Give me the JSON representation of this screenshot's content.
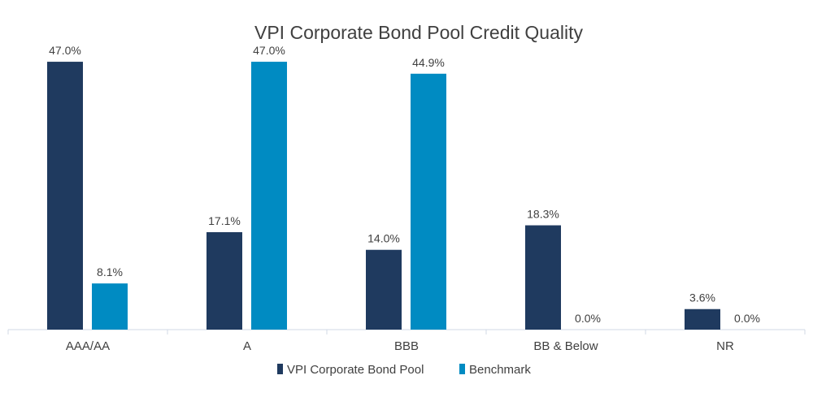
{
  "chart_data": {
    "type": "bar",
    "title": "VPI Corporate Bond Pool Credit Quality",
    "xlabel": "",
    "ylabel": "",
    "ylim": [
      0,
      50
    ],
    "grid": false,
    "legend_position": "bottom",
    "categories": [
      "AAA/AA",
      "A",
      "BBB",
      "BB & Below",
      "NR"
    ],
    "series": [
      {
        "name": "VPI Corporate Bond Pool",
        "color": "#1F3A5F",
        "values": [
          47.0,
          17.1,
          14.0,
          18.3,
          3.6
        ],
        "labels": [
          "47.0%",
          "17.1%",
          "14.0%",
          "18.3%",
          "3.6%"
        ]
      },
      {
        "name": "Benchmark",
        "color": "#008BC2",
        "values": [
          8.1,
          47.0,
          44.9,
          0.0,
          0.0
        ],
        "labels": [
          "8.1%",
          "47.0%",
          "44.9%",
          "0.0%",
          "0.0%"
        ]
      }
    ]
  }
}
